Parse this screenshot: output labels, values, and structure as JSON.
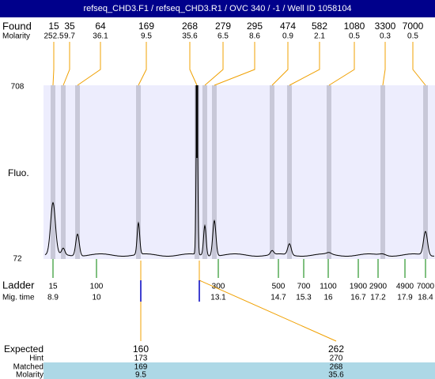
{
  "header": {
    "title": "refseq_CHD3.F1 / refseq_CHD3.R1 / OVC 340 / -1 / Well ID 1058104"
  },
  "found": {
    "label": "Found",
    "molarity_label": "Molarity",
    "peaks": [
      {
        "size": 15,
        "molarity": 252.5
      },
      {
        "size": 35,
        "molarity": 9.7
      },
      {
        "size": 64,
        "molarity": 36.1
      },
      {
        "size": 169,
        "molarity": 9.5
      },
      {
        "size": 268,
        "molarity": 35.6
      },
      {
        "size": 279,
        "molarity": 6.5
      },
      {
        "size": 295,
        "molarity": 8.6
      },
      {
        "size": 474,
        "molarity": 0.9
      },
      {
        "size": 582,
        "molarity": 2.1
      },
      {
        "size": 1080,
        "molarity": 0.5
      },
      {
        "size": 3300,
        "molarity": 0.3
      },
      {
        "size": 7000,
        "molarity": 0.5
      }
    ]
  },
  "plot": {
    "y_label": "Fluo.",
    "y_max": 708,
    "y_min": 72
  },
  "ladder": {
    "label": "Ladder",
    "time_label": "Mig. time",
    "items": [
      {
        "size": 15,
        "time": 8.9
      },
      {
        "size": 100,
        "time": 10
      },
      {
        "size": 300,
        "time": 13.1
      },
      {
        "size": 500,
        "time": 14.7
      },
      {
        "size": 700,
        "time": 15.3
      },
      {
        "size": 1100,
        "time": 16
      },
      {
        "size": 1900,
        "time": 16.7
      },
      {
        "size": 2900,
        "time": 17.2
      },
      {
        "size": 4900,
        "time": 17.9
      },
      {
        "size": 7000,
        "time": 18.4
      }
    ]
  },
  "expected": {
    "label": "Expected",
    "hint_label": "Hint",
    "matched_label": "Matched",
    "molarity_label": "Molarity",
    "items": [
      {
        "expected": 160,
        "hint": 173,
        "matched": 169,
        "molarity": 9.5
      },
      {
        "expected": 262,
        "hint": 270,
        "matched": 268,
        "molarity": 35.6
      }
    ]
  }
}
